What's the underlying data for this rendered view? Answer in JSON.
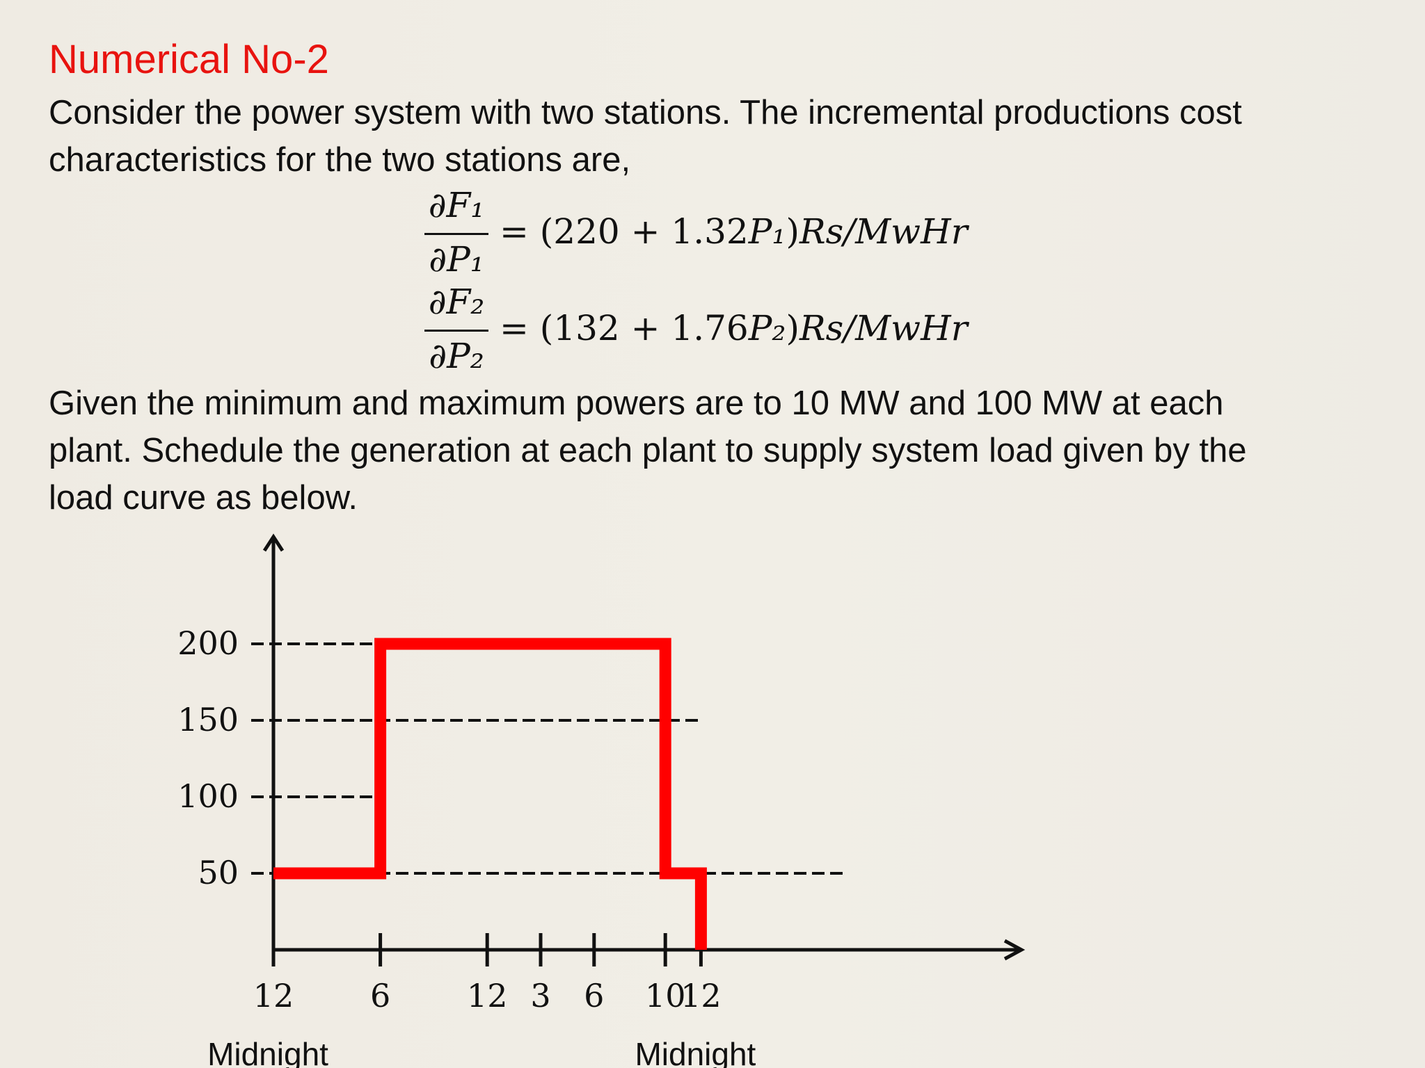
{
  "slide": {
    "title": "Numerical No-2",
    "intro_lines": [
      "Consider the power system with two stations. The incremental productions cost",
      "characteristics for the two stations are,"
    ],
    "equations": [
      {
        "numerator": "∂F₁",
        "denominator": "∂P₁",
        "rhs_open": "= (220 + 1.32",
        "rhs_var": "P₁",
        "rhs_close": ")",
        "rhs_unit": "Rs/MwHr"
      },
      {
        "numerator": "∂F₂",
        "denominator": "∂P₂",
        "rhs_open": "= (132 + 1.76",
        "rhs_var": "P₂",
        "rhs_close": ")",
        "rhs_unit": "Rs/MwHr"
      }
    ],
    "given_lines": [
      "Given the minimum and maximum powers are to 10 MW and 100 MW at each",
      "plant. Schedule the generation at each plant to supply system load given by the",
      "load curve as below."
    ]
  },
  "chart_data": {
    "type": "line",
    "step": true,
    "title": "",
    "xlabel": "",
    "ylabel": "",
    "x_ticks": [
      "12",
      "6",
      "12",
      "3",
      "6",
      "10",
      "12"
    ],
    "x_tick_sublabels": [
      "Midnight",
      "",
      "",
      "",
      "",
      "",
      "Midnight"
    ],
    "y_ticks": [
      200,
      150,
      100,
      50
    ],
    "ylim": [
      0,
      200
    ],
    "x_hours": [
      0,
      6,
      12,
      15,
      18,
      22,
      24
    ],
    "series": [
      {
        "color": "#ff0000",
        "points": [
          [
            0,
            50
          ],
          [
            6,
            50
          ],
          [
            6,
            200
          ],
          [
            22,
            200
          ],
          [
            22,
            50
          ],
          [
            24,
            50
          ],
          [
            24,
            0
          ]
        ]
      }
    ],
    "reference_lines": [
      {
        "y": 200,
        "to_hour": 6
      },
      {
        "y": 150,
        "to_hour": 24
      },
      {
        "y": 100,
        "to_hour": 6
      },
      {
        "y": 50,
        "to_hour": 32
      }
    ],
    "grid": false,
    "axis_color": "#111111"
  }
}
